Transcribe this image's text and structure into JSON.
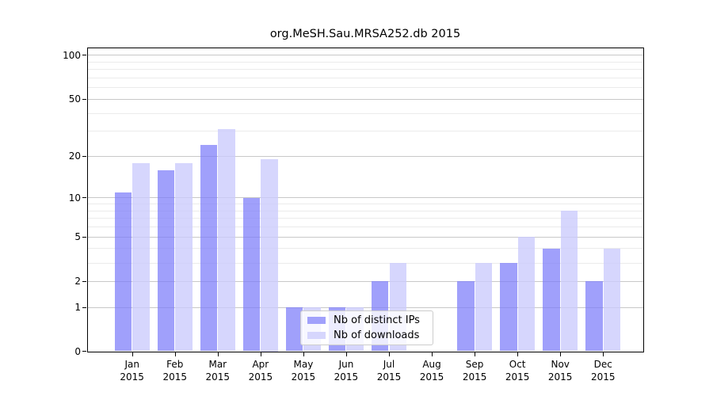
{
  "chart_data": {
    "type": "bar",
    "title": "org.MeSH.Sau.MRSA252.db 2015",
    "categories": [
      "Jan",
      "Feb",
      "Mar",
      "Apr",
      "May",
      "Jun",
      "Jul",
      "Aug",
      "Sep",
      "Oct",
      "Nov",
      "Dec"
    ],
    "x_tick_second_line": "2015",
    "series": [
      {
        "name": "Nb of distinct IPs",
        "fill": "rgba(124,124,250,0.72)",
        "swatch_color": "#a1a1fb",
        "values": [
          11,
          16,
          24,
          10,
          1,
          1,
          2,
          0,
          2,
          3,
          4,
          2
        ]
      },
      {
        "name": "Nb of downloads",
        "fill": "rgba(202,202,252,0.78)",
        "swatch_color": "#d6d6fd",
        "values": [
          18,
          18,
          31,
          19,
          1,
          1,
          3,
          0,
          3,
          5,
          8,
          4
        ]
      }
    ],
    "scale": "log1p",
    "ylim": [
      0,
      113
    ],
    "y_tick_values": [
      0,
      1,
      2,
      5,
      10,
      20,
      50,
      100
    ],
    "y_tick_labels": [
      "0",
      "1",
      "2",
      "5",
      "10",
      "20",
      "50",
      "100"
    ],
    "minor_gridline_values": [
      3,
      4,
      6,
      7,
      8,
      9,
      30,
      40,
      60,
      70,
      80,
      90
    ],
    "grid": "on",
    "legend_position": "lower-center",
    "grid_major_color": "#c8c8c8",
    "grid_minor_color": "#ebebeb"
  }
}
